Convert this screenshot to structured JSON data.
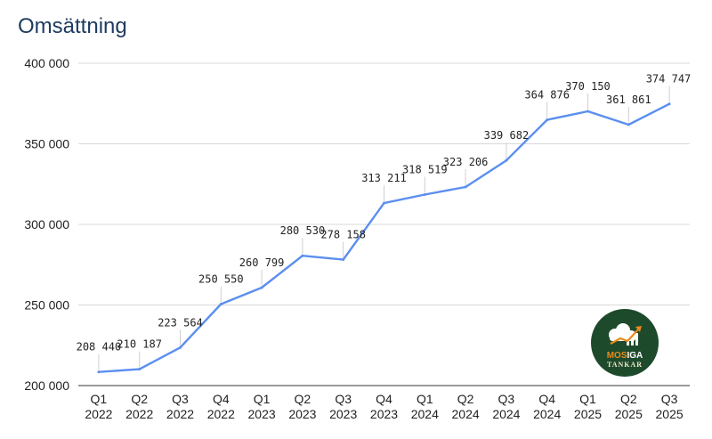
{
  "chart_data": {
    "type": "line",
    "title": "Omsättning",
    "xlabel": "",
    "ylabel": "",
    "categories": [
      [
        "Q1",
        "2022"
      ],
      [
        "Q2",
        "2022"
      ],
      [
        "Q3",
        "2022"
      ],
      [
        "Q4",
        "2022"
      ],
      [
        "Q1",
        "2023"
      ],
      [
        "Q2",
        "2023"
      ],
      [
        "Q3",
        "2023"
      ],
      [
        "Q4",
        "2023"
      ],
      [
        "Q1",
        "2024"
      ],
      [
        "Q2",
        "2024"
      ],
      [
        "Q3",
        "2024"
      ],
      [
        "Q4",
        "2024"
      ],
      [
        "Q1",
        "2025"
      ],
      [
        "Q2",
        "2025"
      ],
      [
        "Q3",
        "2025"
      ]
    ],
    "series": [
      {
        "values": [
          208440,
          210187,
          223564,
          250550,
          260799,
          280530,
          278158,
          313211,
          318519,
          323206,
          339682,
          364876,
          370150,
          361861,
          374747
        ],
        "labels": [
          "208 440",
          "210 187",
          "223 564",
          "250 550",
          "260 799",
          "280 530",
          "278 158",
          "313 211",
          "318 519",
          "323 206",
          "339 682",
          "364 876",
          "370 150",
          "361 861",
          "374 747"
        ],
        "color": "#5b8ff0"
      }
    ],
    "ylim": [
      200000,
      400000
    ],
    "yticks": [
      200000,
      250000,
      300000,
      350000,
      400000
    ],
    "ytick_labels": [
      "200 000",
      "250 000",
      "300 000",
      "350 000",
      "400 000"
    ],
    "grid": true,
    "gridColor": "#d9d9d9"
  },
  "logo": {
    "line1a": "MOS",
    "line1b": "IGA",
    "line2": "TANKAR",
    "bg_color": "#1e4a2c",
    "accent_color": "#e88a1a"
  }
}
